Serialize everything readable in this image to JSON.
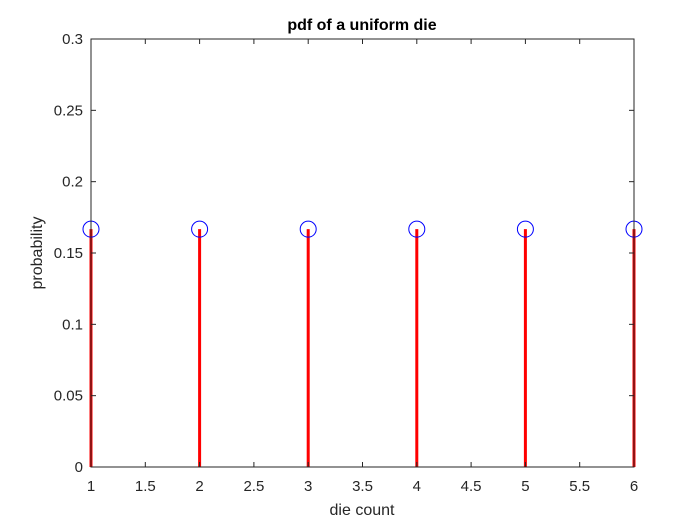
{
  "chart_data": {
    "type": "stem",
    "title": "pdf of a uniform die",
    "xlabel": "die count",
    "ylabel": "probability",
    "x": [
      1,
      2,
      3,
      4,
      5,
      6
    ],
    "y": [
      0.1667,
      0.1667,
      0.1667,
      0.1667,
      0.1667,
      0.1667
    ],
    "xlim": [
      1,
      6
    ],
    "ylim": [
      0,
      0.3
    ],
    "xticks": [
      "1",
      "1.5",
      "2",
      "2.5",
      "3",
      "3.5",
      "4",
      "4.5",
      "5",
      "5.5",
      "6"
    ],
    "yticks": [
      "0",
      "0.05",
      "0.1",
      "0.15",
      "0.2",
      "0.25",
      "0.3"
    ],
    "grid": false,
    "box": true,
    "stem_color": "#ff0000",
    "marker_color": "#0000ff",
    "marker": "open-circle"
  }
}
